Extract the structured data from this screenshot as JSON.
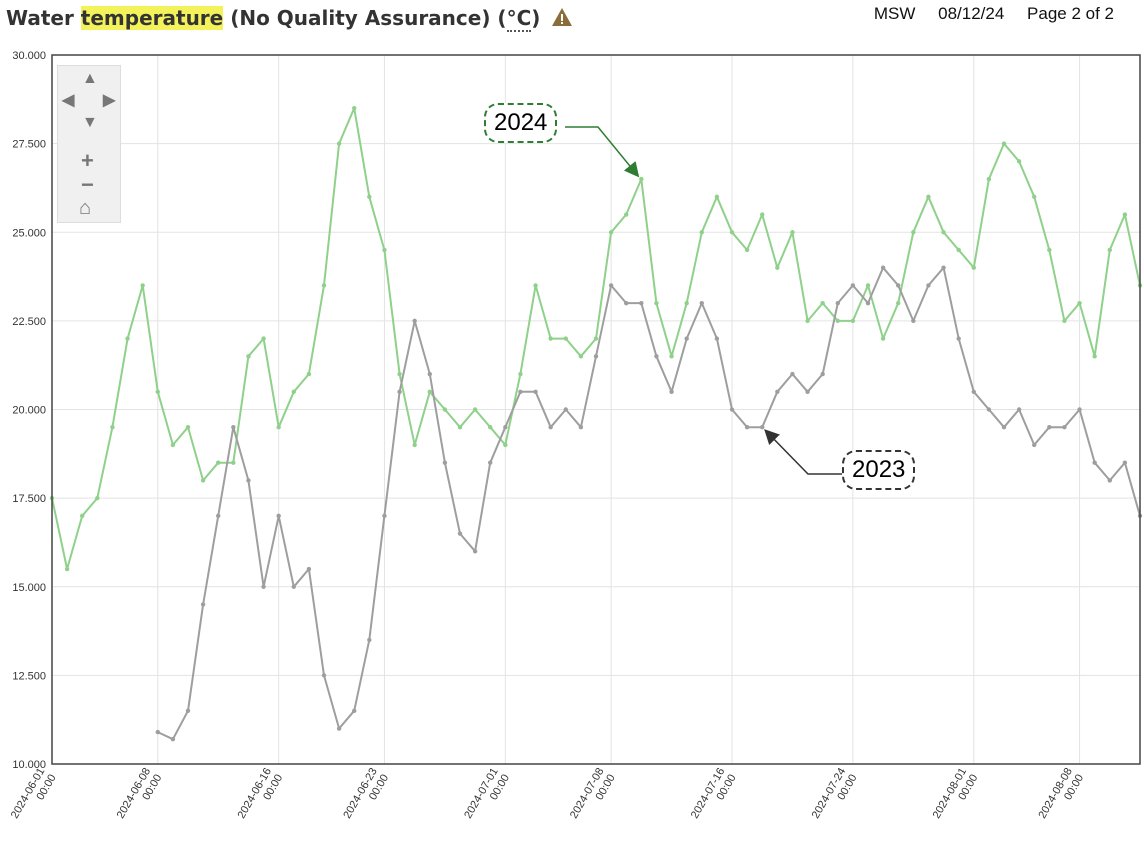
{
  "header": {
    "title_pre": "Water ",
    "title_highlight": "temperature",
    "title_post": " (No Quality Assurance) (",
    "title_unit": "°C",
    "title_close": ")",
    "warning_icon": "warning-triangle-icon",
    "meta_author": "MSW",
    "meta_date": "08/12/24",
    "meta_page": "Page 2 of 2"
  },
  "nav": {
    "up": "▲",
    "down": "▼",
    "left": "◀",
    "right": "▶",
    "zoom_in": "+",
    "zoom_out": "−",
    "home": "⌂"
  },
  "annotations": {
    "a2024": "2024",
    "a2023": "2023"
  },
  "colors": {
    "series_2024": "#8fd18a",
    "series_2023": "#9e9e9e",
    "grid": "#e3e3e3",
    "axis": "#444444",
    "callout_2024": "#2e7d32",
    "callout_2023": "#333333"
  },
  "chart_data": {
    "type": "line",
    "title": "Water temperature (No Quality Assurance) (°C)",
    "xlabel": "",
    "ylabel": "",
    "ylim": [
      10.0,
      30.0
    ],
    "xlim": [
      "2024-06-01 00:00",
      "2024-08-12 00:00"
    ],
    "y_ticks": [
      "10.000",
      "12.500",
      "15.000",
      "17.500",
      "20.000",
      "22.500",
      "25.000",
      "27.500",
      "30.000"
    ],
    "x_ticks": [
      {
        "date": "2024-06-01",
        "time": "00:00"
      },
      {
        "date": "2024-06-08",
        "time": "00:00"
      },
      {
        "date": "2024-06-16",
        "time": "00:00"
      },
      {
        "date": "2024-06-23",
        "time": "00:00"
      },
      {
        "date": "2024-07-01",
        "time": "00:00"
      },
      {
        "date": "2024-07-08",
        "time": "00:00"
      },
      {
        "date": "2024-07-16",
        "time": "00:00"
      },
      {
        "date": "2024-07-24",
        "time": "00:00"
      },
      {
        "date": "2024-08-01",
        "time": "00:00"
      },
      {
        "date": "2024-08-08",
        "time": "00:00"
      }
    ],
    "grid": true,
    "series": [
      {
        "name": "2024",
        "color": "#8fd18a",
        "x": [
          "2024-06-01",
          "2024-06-02",
          "2024-06-03",
          "2024-06-04",
          "2024-06-05",
          "2024-06-06",
          "2024-06-07",
          "2024-06-08",
          "2024-06-09",
          "2024-06-10",
          "2024-06-11",
          "2024-06-12",
          "2024-06-13",
          "2024-06-14",
          "2024-06-15",
          "2024-06-16",
          "2024-06-17",
          "2024-06-18",
          "2024-06-19",
          "2024-06-20",
          "2024-06-21",
          "2024-06-22",
          "2024-06-23",
          "2024-06-24",
          "2024-06-25",
          "2024-06-26",
          "2024-06-27",
          "2024-06-28",
          "2024-06-29",
          "2024-06-30",
          "2024-07-01",
          "2024-07-02",
          "2024-07-03",
          "2024-07-04",
          "2024-07-05",
          "2024-07-06",
          "2024-07-07",
          "2024-07-08",
          "2024-07-09",
          "2024-07-10",
          "2024-07-11",
          "2024-07-12",
          "2024-07-13",
          "2024-07-14",
          "2024-07-15",
          "2024-07-16",
          "2024-07-17",
          "2024-07-18",
          "2024-07-19",
          "2024-07-20",
          "2024-07-21",
          "2024-07-22",
          "2024-07-23",
          "2024-07-24",
          "2024-07-25",
          "2024-07-26",
          "2024-07-27",
          "2024-07-28",
          "2024-07-29",
          "2024-07-30",
          "2024-07-31",
          "2024-08-01",
          "2024-08-02",
          "2024-08-03",
          "2024-08-04",
          "2024-08-05",
          "2024-08-06",
          "2024-08-07",
          "2024-08-08",
          "2024-08-09",
          "2024-08-10",
          "2024-08-11",
          "2024-08-12"
        ],
        "values": [
          17.5,
          15.5,
          17.0,
          17.5,
          19.5,
          22.0,
          23.5,
          20.5,
          19.0,
          19.5,
          18.0,
          18.5,
          18.5,
          21.5,
          22.0,
          19.5,
          20.5,
          21.0,
          23.5,
          27.5,
          28.5,
          26.0,
          24.5,
          21.0,
          19.0,
          20.5,
          20.0,
          19.5,
          20.0,
          19.5,
          19.0,
          21.0,
          23.5,
          22.0,
          22.0,
          21.5,
          22.0,
          25.0,
          25.5,
          26.5,
          23.0,
          21.5,
          23.0,
          25.0,
          26.0,
          25.0,
          24.5,
          25.5,
          24.0,
          25.0,
          22.5,
          23.0,
          22.5,
          22.5,
          23.5,
          22.0,
          23.0,
          25.0,
          26.0,
          25.0,
          24.5,
          24.0,
          26.5,
          27.5,
          27.0,
          26.0,
          24.5,
          22.5,
          23.0,
          21.5,
          24.5,
          25.5,
          23.5
        ]
      },
      {
        "name": "2023",
        "color": "#9e9e9e",
        "x": [
          "2024-06-08",
          "2024-06-09",
          "2024-06-10",
          "2024-06-11",
          "2024-06-12",
          "2024-06-13",
          "2024-06-14",
          "2024-06-15",
          "2024-06-16",
          "2024-06-17",
          "2024-06-18",
          "2024-06-19",
          "2024-06-20",
          "2024-06-21",
          "2024-06-22",
          "2024-06-23",
          "2024-06-24",
          "2024-06-25",
          "2024-06-26",
          "2024-06-27",
          "2024-06-28",
          "2024-06-29",
          "2024-06-30",
          "2024-07-01",
          "2024-07-02",
          "2024-07-03",
          "2024-07-04",
          "2024-07-05",
          "2024-07-06",
          "2024-07-07",
          "2024-07-08",
          "2024-07-09",
          "2024-07-10",
          "2024-07-11",
          "2024-07-12",
          "2024-07-13",
          "2024-07-14",
          "2024-07-15",
          "2024-07-16",
          "2024-07-17",
          "2024-07-18",
          "2024-07-19",
          "2024-07-20",
          "2024-07-21",
          "2024-07-22",
          "2024-07-23",
          "2024-07-24",
          "2024-07-25",
          "2024-07-26",
          "2024-07-27",
          "2024-07-28",
          "2024-07-29",
          "2024-07-30",
          "2024-07-31",
          "2024-08-01",
          "2024-08-02",
          "2024-08-03",
          "2024-08-04",
          "2024-08-05",
          "2024-08-06",
          "2024-08-07",
          "2024-08-08",
          "2024-08-09",
          "2024-08-10",
          "2024-08-11",
          "2024-08-12"
        ],
        "values": [
          10.9,
          10.7,
          11.5,
          14.5,
          17.0,
          19.5,
          18.0,
          15.0,
          17.0,
          15.0,
          15.5,
          12.5,
          11.0,
          11.5,
          13.5,
          17.0,
          20.5,
          22.5,
          21.0,
          18.5,
          16.5,
          16.0,
          18.5,
          19.5,
          20.5,
          20.5,
          19.5,
          20.0,
          19.5,
          21.5,
          23.5,
          23.0,
          23.0,
          21.5,
          20.5,
          22.0,
          23.0,
          22.0,
          20.0,
          19.5,
          19.5,
          20.5,
          21.0,
          20.5,
          21.0,
          23.0,
          23.5,
          23.0,
          24.0,
          23.5,
          22.5,
          23.5,
          24.0,
          22.0,
          20.5,
          20.0,
          19.5,
          20.0,
          19.0,
          19.5,
          19.5,
          20.0,
          18.5,
          18.0,
          18.5,
          17.0
        ]
      }
    ]
  }
}
